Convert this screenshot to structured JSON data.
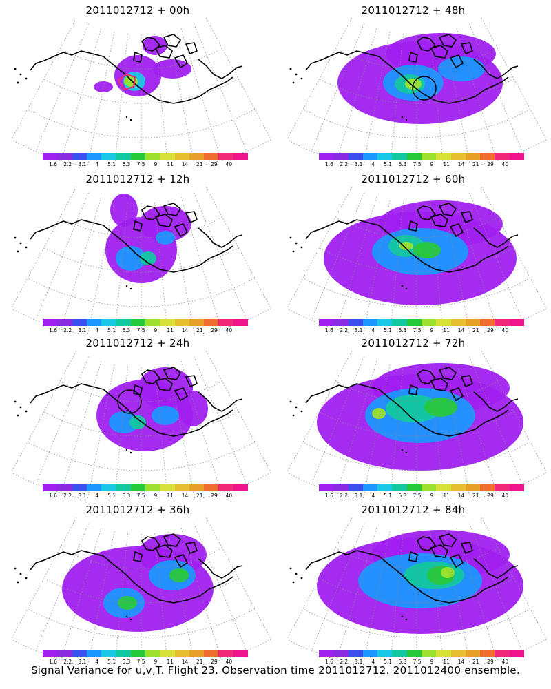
{
  "panels": [
    {
      "title": "2011012712 + 00h",
      "lead": 0
    },
    {
      "title": "2011012712 + 12h",
      "lead": 12
    },
    {
      "title": "2011012712 + 24h",
      "lead": 24
    },
    {
      "title": "2011012712 + 36h",
      "lead": 36
    },
    {
      "title": "2011012712 + 48h",
      "lead": 48
    },
    {
      "title": "2011012712 + 60h",
      "lead": 60
    },
    {
      "title": "2011012712 + 72h",
      "lead": 72
    },
    {
      "title": "2011012712 + 84h",
      "lead": 84
    }
  ],
  "colorbar": {
    "labels": [
      "1.6",
      "2.2",
      "3.1",
      "4",
      "5.1",
      "6.3",
      "7.5",
      "9",
      "11",
      "14",
      "21",
      "29",
      "40"
    ],
    "colors": [
      "#a020f0",
      "#8a2be2",
      "#3c50f0",
      "#1e96ff",
      "#19c8e6",
      "#12c8a0",
      "#28c83c",
      "#9be12d",
      "#d7e137",
      "#e6be32",
      "#e6a028",
      "#f06e32",
      "#f02878",
      "#f0148c"
    ]
  },
  "footer": "Signal Variance for u,v,T. Flight 23. Observation time 2011012712. 2011012400 ensemble."
}
